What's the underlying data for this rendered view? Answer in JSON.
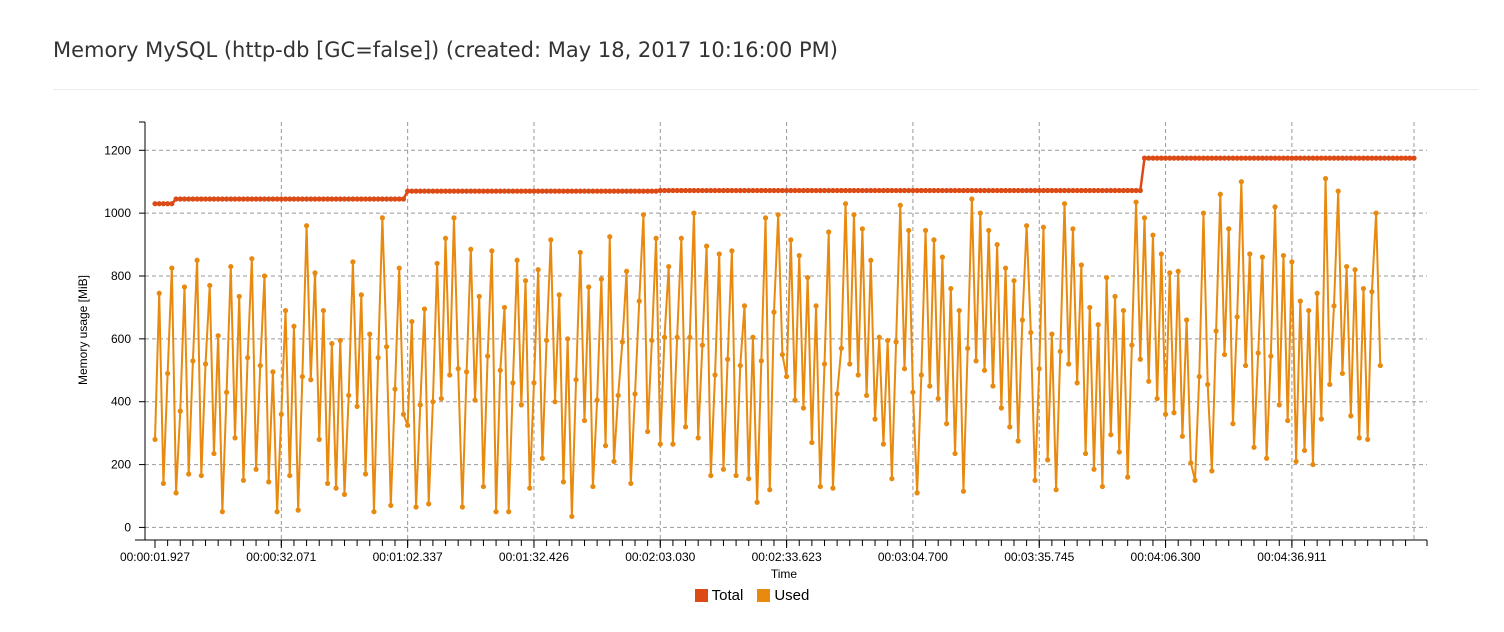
{
  "page": {
    "title": "Memory MySQL (http-db [GC=false]) (created: May 18, 2017 10:16:00 PM)"
  },
  "chart_data": {
    "type": "line",
    "xlabel": "Time",
    "ylabel": "Memory usage [MiB]",
    "ylim": [
      -40,
      1290
    ],
    "yticks": [
      0,
      200,
      400,
      600,
      800,
      1000,
      1200
    ],
    "xtick_labels": [
      "00:00:01.927",
      "00:00:32.071",
      "00:01:02.337",
      "00:01:32.426",
      "00:02:03.030",
      "00:02:33.623",
      "00:03:04.700",
      "00:03:35.745",
      "00:04:06.300",
      "00:04:36.911"
    ],
    "grid": true,
    "legend_position": "bottom",
    "sample_count": 300,
    "x_axis": "sample index over ~5 min run (one sample per second)",
    "series": [
      {
        "name": "Total",
        "color": "#dc4a15",
        "segments": [
          {
            "from": 0,
            "to": 5,
            "value": 1030
          },
          {
            "from": 5,
            "to": 60,
            "value": 1045
          },
          {
            "from": 60,
            "to": 120,
            "value": 1070
          },
          {
            "from": 120,
            "to": 235,
            "value": 1072
          },
          {
            "from": 235,
            "to": 299,
            "value": 1175
          }
        ]
      },
      {
        "name": "Used",
        "color": "#e88a10",
        "values": [
          280,
          745,
          140,
          490,
          825,
          110,
          370,
          765,
          170,
          530,
          850,
          165,
          520,
          770,
          235,
          610,
          50,
          430,
          830,
          285,
          735,
          150,
          540,
          855,
          185,
          515,
          800,
          145,
          495,
          50,
          360,
          690,
          165,
          640,
          55,
          480,
          960,
          470,
          810,
          280,
          690,
          140,
          585,
          125,
          595,
          105,
          420,
          845,
          385,
          740,
          170,
          615,
          50,
          540,
          985,
          575,
          70,
          440,
          825,
          360,
          325,
          655,
          65,
          390,
          695,
          75,
          400,
          840,
          410,
          920,
          485,
          985,
          505,
          65,
          495,
          885,
          405,
          735,
          130,
          545,
          880,
          50,
          500,
          700,
          50,
          460,
          850,
          390,
          785,
          125,
          460,
          820,
          220,
          595,
          915,
          400,
          740,
          145,
          600,
          35,
          470,
          875,
          340,
          765,
          130,
          405,
          790,
          260,
          925,
          210,
          420,
          590,
          815,
          140,
          425,
          720,
          995,
          305,
          595,
          920,
          265,
          605,
          830,
          265,
          605,
          920,
          320,
          605,
          1000,
          285,
          580,
          895,
          165,
          485,
          870,
          185,
          535,
          880,
          165,
          515,
          705,
          155,
          605,
          80,
          530,
          985,
          120,
          685,
          995,
          550,
          480,
          915,
          405,
          865,
          380,
          795,
          270,
          705,
          130,
          520,
          940,
          125,
          425,
          570,
          1030,
          520,
          995,
          485,
          950,
          420,
          850,
          345,
          605,
          265,
          595,
          155,
          590,
          1025,
          505,
          945,
          430,
          110,
          485,
          945,
          450,
          915,
          410,
          860,
          330,
          760,
          235,
          690,
          115,
          570,
          1045,
          530,
          1000,
          500,
          945,
          450,
          900,
          380,
          825,
          320,
          785,
          275,
          660,
          960,
          620,
          150,
          505,
          955,
          215,
          615,
          120,
          560,
          1030,
          520,
          950,
          460,
          835,
          235,
          700,
          185,
          645,
          130,
          795,
          295,
          735,
          240,
          690,
          160,
          580,
          1035,
          535,
          985,
          465,
          930,
          410,
          870,
          360,
          810,
          365,
          815,
          290,
          660,
          205,
          150,
          480,
          1000,
          455,
          180,
          625,
          1060,
          550,
          950,
          330,
          670,
          1100,
          515,
          870,
          255,
          555,
          860,
          220,
          545,
          1020,
          390,
          865,
          340,
          845,
          210,
          720,
          245,
          690,
          200,
          745,
          345,
          1110,
          455,
          705,
          1070,
          490,
          830,
          355,
          820,
          285,
          760,
          280,
          750,
          1000,
          515
        ]
      }
    ]
  }
}
